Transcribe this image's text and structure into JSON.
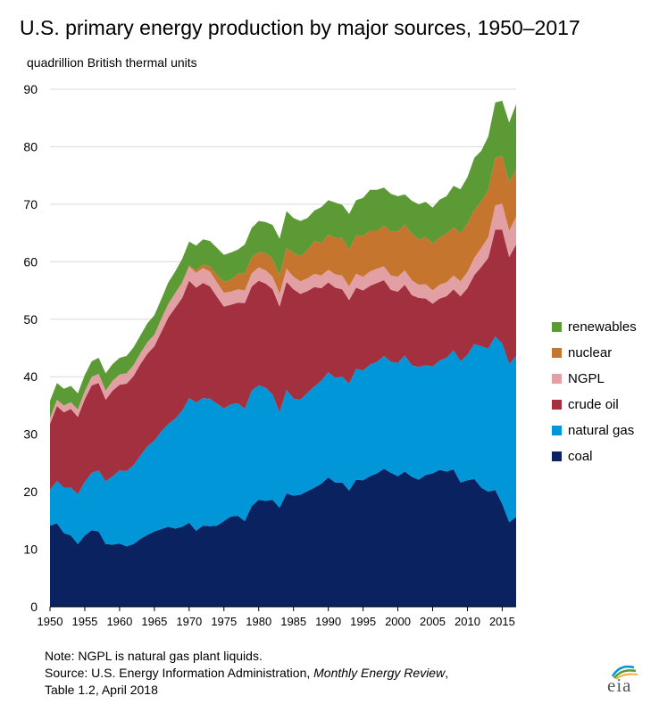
{
  "chart_data": {
    "type": "area",
    "stacked": true,
    "title": "U.S. primary energy production by major sources, 1950–2017",
    "ylabel": "quadrillion British thermal units",
    "xlabel": "",
    "ylim": [
      0,
      90
    ],
    "xlim": [
      1950,
      2017
    ],
    "yticks": [
      0,
      10,
      20,
      30,
      40,
      50,
      60,
      70,
      80,
      90
    ],
    "xticks": [
      1950,
      1955,
      1960,
      1965,
      1970,
      1975,
      1980,
      1985,
      1990,
      1995,
      2000,
      2005,
      2010,
      2015
    ],
    "grid": true,
    "legend_position": "right",
    "x": [
      1950,
      1951,
      1952,
      1953,
      1954,
      1955,
      1956,
      1957,
      1958,
      1959,
      1960,
      1961,
      1962,
      1963,
      1964,
      1965,
      1966,
      1967,
      1968,
      1969,
      1970,
      1971,
      1972,
      1973,
      1974,
      1975,
      1976,
      1977,
      1978,
      1979,
      1980,
      1981,
      1982,
      1983,
      1984,
      1985,
      1986,
      1987,
      1988,
      1989,
      1990,
      1991,
      1992,
      1993,
      1994,
      1995,
      1996,
      1997,
      1998,
      1999,
      2000,
      2001,
      2002,
      2003,
      2004,
      2005,
      2006,
      2007,
      2008,
      2009,
      2010,
      2011,
      2012,
      2013,
      2014,
      2015,
      2016,
      2017
    ],
    "series": [
      {
        "name": "coal",
        "color": "#0b2260",
        "values": [
          14.1,
          14.5,
          12.8,
          12.4,
          10.9,
          12.4,
          13.3,
          13.1,
          10.9,
          10.8,
          11.0,
          10.5,
          10.9,
          11.8,
          12.5,
          13.1,
          13.5,
          13.9,
          13.6,
          13.9,
          14.6,
          13.2,
          14.1,
          14.0,
          14.1,
          14.9,
          15.7,
          15.8,
          14.9,
          17.5,
          18.6,
          18.4,
          18.6,
          17.2,
          19.7,
          19.3,
          19.5,
          20.1,
          20.7,
          21.4,
          22.5,
          21.6,
          21.6,
          20.2,
          22.1,
          22.0,
          22.7,
          23.2,
          24.0,
          23.3,
          22.7,
          23.5,
          22.6,
          22.1,
          22.9,
          23.2,
          23.8,
          23.5,
          23.9,
          21.6,
          22.0,
          22.2,
          20.7,
          20.0,
          20.3,
          17.9,
          14.7,
          15.6
        ]
      },
      {
        "name": "natural gas",
        "color": "#0096d7",
        "values": [
          6.2,
          7.4,
          7.9,
          8.3,
          8.7,
          9.3,
          10.0,
          10.6,
          10.9,
          11.9,
          12.7,
          13.1,
          13.7,
          14.5,
          15.4,
          15.8,
          17.0,
          17.9,
          19.1,
          20.2,
          21.7,
          22.3,
          22.2,
          22.2,
          21.2,
          19.6,
          19.5,
          19.6,
          19.5,
          20.1,
          19.9,
          19.7,
          18.3,
          16.6,
          18.0,
          16.9,
          16.5,
          17.1,
          17.6,
          17.9,
          18.3,
          18.2,
          18.4,
          18.6,
          19.3,
          19.1,
          19.4,
          19.4,
          19.6,
          19.3,
          19.7,
          20.2,
          19.4,
          19.6,
          19.1,
          18.6,
          19.0,
          19.8,
          20.7,
          21.1,
          21.8,
          23.5,
          24.6,
          24.9,
          26.7,
          27.9,
          27.5,
          28.0
        ]
      },
      {
        "name": "crude oil",
        "color": "#a3303f",
        "values": [
          11.5,
          13.0,
          13.1,
          13.7,
          13.4,
          14.4,
          15.2,
          15.2,
          14.2,
          14.9,
          14.9,
          15.2,
          15.5,
          15.9,
          16.1,
          16.4,
          17.3,
          18.5,
          19.3,
          19.6,
          20.4,
          20.0,
          20.0,
          19.5,
          18.6,
          17.7,
          17.3,
          17.5,
          18.4,
          18.1,
          18.2,
          18.1,
          18.3,
          18.4,
          18.8,
          19.0,
          18.4,
          17.7,
          17.3,
          16.1,
          15.6,
          15.7,
          15.2,
          14.5,
          14.1,
          13.9,
          13.7,
          13.7,
          13.2,
          12.5,
          12.4,
          12.3,
          12.2,
          12.0,
          11.6,
          10.9,
          10.8,
          10.7,
          10.6,
          11.3,
          11.6,
          12.0,
          13.8,
          15.8,
          18.6,
          19.8,
          18.6,
          19.4
        ]
      },
      {
        "name": "NGPL",
        "color": "#e3a0a4",
        "values": [
          1.0,
          1.1,
          1.2,
          1.2,
          1.3,
          1.4,
          1.5,
          1.6,
          1.6,
          1.7,
          1.8,
          1.8,
          1.9,
          1.9,
          2.0,
          2.0,
          2.2,
          2.3,
          2.5,
          2.6,
          2.5,
          2.6,
          2.6,
          2.6,
          2.5,
          2.4,
          2.3,
          2.3,
          2.2,
          2.3,
          2.3,
          2.3,
          2.2,
          2.2,
          2.3,
          2.2,
          2.2,
          2.2,
          2.3,
          2.2,
          2.2,
          2.3,
          2.4,
          2.4,
          2.4,
          2.4,
          2.5,
          2.5,
          2.4,
          2.5,
          2.6,
          2.5,
          2.6,
          2.3,
          2.5,
          2.3,
          2.4,
          2.4,
          2.4,
          2.6,
          2.8,
          3.0,
          3.3,
          3.6,
          4.2,
          4.5,
          4.6,
          4.8
        ]
      },
      {
        "name": "nuclear",
        "color": "#c5752d",
        "values": [
          0,
          0,
          0,
          0,
          0,
          0,
          0,
          0,
          0,
          0,
          0,
          0,
          0,
          0,
          0,
          0,
          0.1,
          0.1,
          0.1,
          0.2,
          0.2,
          0.4,
          0.6,
          0.9,
          1.3,
          1.9,
          2.1,
          2.7,
          3.0,
          2.8,
          2.7,
          3.0,
          3.1,
          3.2,
          3.6,
          4.1,
          4.4,
          4.9,
          5.7,
          5.7,
          6.1,
          6.4,
          6.5,
          6.4,
          6.7,
          7.1,
          7.1,
          6.6,
          7.1,
          7.6,
          7.9,
          8.0,
          8.1,
          7.9,
          8.2,
          8.2,
          8.2,
          8.5,
          8.4,
          8.4,
          8.4,
          8.3,
          8.1,
          8.2,
          8.3,
          8.3,
          8.4,
          8.4
        ]
      },
      {
        "name": "renewables",
        "color": "#5b9a35",
        "values": [
          3.0,
          2.9,
          2.9,
          2.8,
          2.8,
          2.8,
          2.7,
          2.8,
          3.0,
          2.9,
          2.9,
          3.0,
          3.1,
          3.1,
          3.3,
          3.4,
          3.4,
          3.7,
          3.7,
          4.0,
          4.1,
          4.3,
          4.4,
          4.4,
          4.7,
          4.7,
          4.7,
          4.2,
          5.0,
          5.1,
          5.4,
          5.4,
          5.9,
          6.4,
          6.4,
          6.1,
          6.1,
          5.6,
          5.3,
          6.2,
          6.0,
          6.1,
          5.8,
          6.2,
          6.1,
          6.6,
          7.1,
          7.1,
          6.6,
          6.6,
          6.1,
          5.2,
          5.7,
          6.1,
          6.1,
          6.2,
          6.6,
          6.5,
          7.2,
          7.6,
          8.1,
          9.1,
          8.8,
          9.3,
          9.6,
          9.6,
          10.4,
          11.2
        ]
      }
    ]
  },
  "legend_order": [
    "renewables",
    "nuclear",
    "NGPL",
    "crude oil",
    "natural gas",
    "coal"
  ],
  "legend": [
    {
      "label": "renewables",
      "color": "#5b9a35"
    },
    {
      "label": "nuclear",
      "color": "#c5752d"
    },
    {
      "label": "NGPL",
      "color": "#e3a0a4"
    },
    {
      "label": "crude oil",
      "color": "#a3303f"
    },
    {
      "label": "natural gas",
      "color": "#0096d7"
    },
    {
      "label": "coal",
      "color": "#0b2260"
    }
  ],
  "notes": {
    "line1": "Note: NGPL is natural gas plant liquids.",
    "line2_prefix": "Source: U.S. Energy Information Administration, ",
    "line2_italic": "Monthly Energy Review",
    "line2_suffix": ",",
    "line3": "Table 1.2, April 2018"
  },
  "logo": {
    "text": "eia"
  }
}
